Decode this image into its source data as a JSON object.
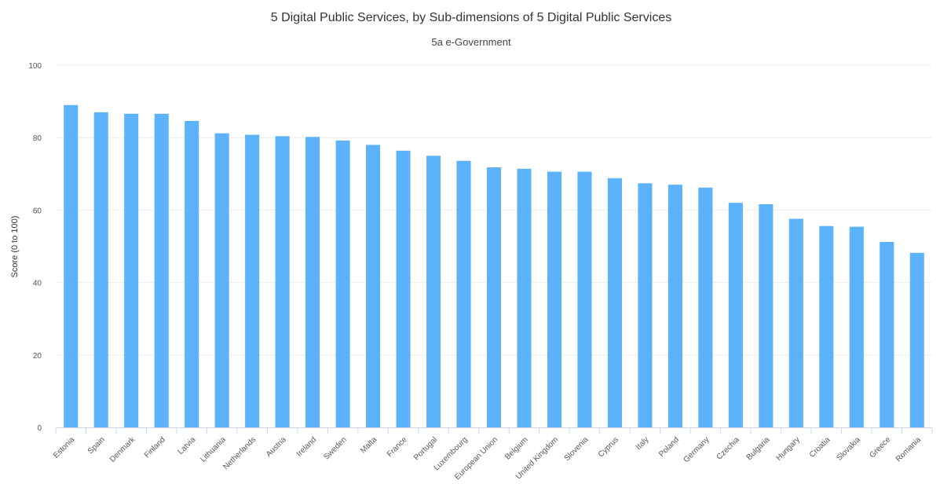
{
  "chart_data": {
    "type": "bar",
    "title": "5 Digital Public Services, by Sub-dimensions of 5 Digital Public Services",
    "subtitle": "5a e-Government",
    "xlabel": "",
    "ylabel": "Score (0 to 100)",
    "ylim": [
      0,
      100
    ],
    "yticks": [
      "0",
      "20",
      "40",
      "60",
      "80",
      "100"
    ],
    "grid": true,
    "legend": "none",
    "bar_color": "#5cb3fc",
    "categories": [
      "Estonia",
      "Spain",
      "Denmark",
      "Finland",
      "Latvia",
      "Lithuania",
      "Netherlands",
      "Austria",
      "Ireland",
      "Sweden",
      "Malta",
      "France",
      "Portugal",
      "Luxembourg",
      "European Union",
      "Belgium",
      "United Kingdom",
      "Slovenia",
      "Cyprus",
      "Italy",
      "Poland",
      "Germany",
      "Czechia",
      "Bulgaria",
      "Hungary",
      "Croatia",
      "Slovakia",
      "Greece",
      "Romania"
    ],
    "values": [
      89.0,
      87.0,
      86.6,
      86.6,
      84.6,
      81.2,
      80.8,
      80.4,
      80.2,
      79.2,
      78.0,
      76.4,
      75.0,
      73.6,
      71.8,
      71.4,
      70.6,
      70.6,
      68.8,
      67.4,
      67.0,
      66.2,
      62.0,
      61.6,
      57.6,
      55.6,
      55.4,
      51.2,
      48.2
    ]
  }
}
